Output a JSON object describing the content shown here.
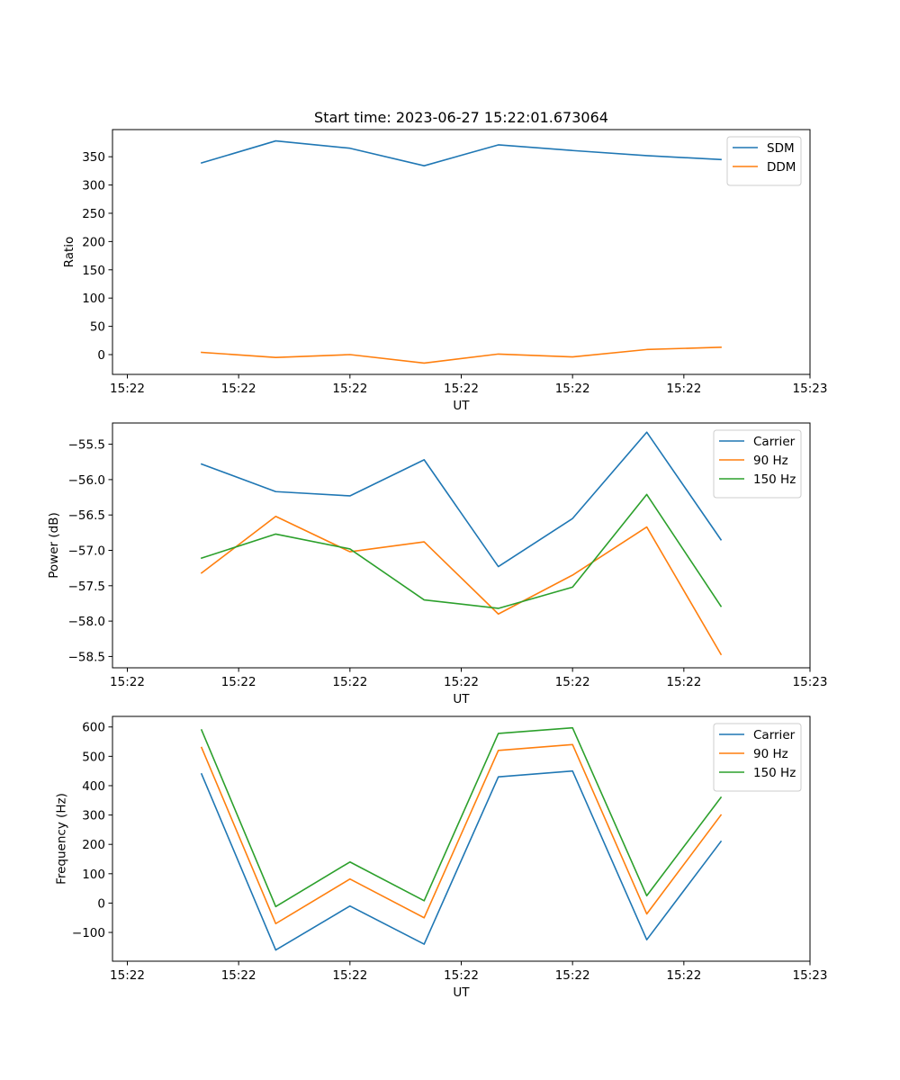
{
  "figure_title": "Start time: 2023-06-27 15:22:01.673064",
  "chart_data": [
    {
      "type": "line",
      "title": "Start time: 2023-06-27 15:22:01.673064",
      "xlabel": "UT",
      "ylabel": "Ratio",
      "x": [
        1,
        2,
        3,
        4,
        5,
        6,
        7,
        8
      ],
      "xlim": [
        -0.2,
        9.2
      ],
      "x_ticks": [
        0,
        1.5,
        3,
        4.5,
        6,
        7.5,
        9.2
      ],
      "x_tick_labels": [
        "15:22",
        "15:22",
        "15:22",
        "15:22",
        "15:22",
        "15:22",
        "15:23"
      ],
      "ylim": [
        -35,
        398
      ],
      "y_ticks": [
        0,
        50,
        100,
        150,
        200,
        250,
        300,
        350
      ],
      "y_tick_labels": [
        "0",
        "50",
        "100",
        "150",
        "200",
        "250",
        "300",
        "350"
      ],
      "grid": false,
      "legend": "top-right",
      "series": [
        {
          "name": "SDM",
          "color": "#1f77b4",
          "values": [
            339,
            378,
            365,
            334,
            371,
            361,
            352,
            345
          ]
        },
        {
          "name": "DDM",
          "color": "#ff7f0e",
          "values": [
            4,
            -5,
            0,
            -15,
            1,
            -4,
            9,
            13
          ]
        }
      ]
    },
    {
      "type": "line",
      "title": "",
      "xlabel": "UT",
      "ylabel": "Power (dB)",
      "x": [
        1,
        2,
        3,
        4,
        5,
        6,
        7,
        8
      ],
      "xlim": [
        -0.2,
        9.2
      ],
      "x_ticks": [
        0,
        1.5,
        3,
        4.5,
        6,
        7.5,
        9.2
      ],
      "x_tick_labels": [
        "15:22",
        "15:22",
        "15:22",
        "15:22",
        "15:22",
        "15:22",
        "15:23"
      ],
      "ylim": [
        -58.66,
        -55.2
      ],
      "y_ticks": [
        -58.5,
        -58.0,
        -57.5,
        -57.0,
        -56.5,
        -56.0,
        -55.5
      ],
      "y_tick_labels": [
        "−58.5",
        "−58.0",
        "−57.5",
        "−57.0",
        "−56.5",
        "−56.0",
        "−55.5"
      ],
      "grid": false,
      "legend": "top-right",
      "series": [
        {
          "name": "Carrier",
          "color": "#1f77b4",
          "values": [
            -55.78,
            -56.17,
            -56.23,
            -55.72,
            -57.23,
            -56.55,
            -55.33,
            -56.85
          ]
        },
        {
          "name": "90 Hz",
          "color": "#ff7f0e",
          "values": [
            -57.32,
            -56.52,
            -57.02,
            -56.88,
            -57.9,
            -57.35,
            -56.67,
            -58.47
          ]
        },
        {
          "name": "150 Hz",
          "color": "#2ca02c",
          "values": [
            -57.11,
            -56.77,
            -56.98,
            -57.7,
            -57.82,
            -57.52,
            -56.21,
            -57.79
          ]
        }
      ]
    },
    {
      "type": "line",
      "title": "",
      "xlabel": "UT",
      "ylabel": "Frequency (Hz)",
      "x": [
        1,
        2,
        3,
        4,
        5,
        6,
        7,
        8
      ],
      "xlim": [
        -0.2,
        9.2
      ],
      "x_ticks": [
        0,
        1.5,
        3,
        4.5,
        6,
        7.5,
        9.2
      ],
      "x_tick_labels": [
        "15:22",
        "15:22",
        "15:22",
        "15:22",
        "15:22",
        "15:22",
        "15:23"
      ],
      "ylim": [
        -198,
        636
      ],
      "y_ticks": [
        -100,
        0,
        100,
        200,
        300,
        400,
        500,
        600
      ],
      "y_tick_labels": [
        "−100",
        "0",
        "100",
        "200",
        "300",
        "400",
        "500",
        "600"
      ],
      "grid": false,
      "legend": "top-right",
      "series": [
        {
          "name": "Carrier",
          "color": "#1f77b4",
          "values": [
            440,
            -160,
            -10,
            -140,
            430,
            450,
            -125,
            210
          ]
        },
        {
          "name": "90 Hz",
          "color": "#ff7f0e",
          "values": [
            530,
            -70,
            82,
            -50,
            520,
            540,
            -37,
            300
          ]
        },
        {
          "name": "150 Hz",
          "color": "#2ca02c",
          "values": [
            590,
            -12,
            140,
            8,
            578,
            597,
            25,
            360
          ]
        }
      ]
    }
  ]
}
